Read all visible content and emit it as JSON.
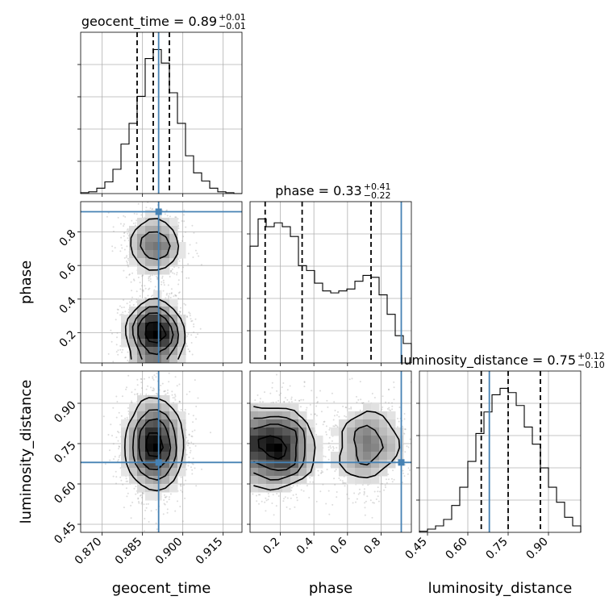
{
  "figure": {
    "type": "corner-plot"
  },
  "colors": {
    "truth": "#4682b4",
    "hist": "#000000",
    "grid": "#b0b0b0",
    "points": "#9a9a9a"
  },
  "chart_data": {
    "type": "corner",
    "parameters": [
      {
        "key": "geocent_time",
        "label": "geocent_time",
        "range": [
          0.862,
          0.922
        ],
        "ticks": [
          "0.870",
          "0.885",
          "0.900",
          "0.915"
        ],
        "tick_values": [
          0.87,
          0.885,
          0.9,
          0.915
        ],
        "truth": 0.891,
        "median": 0.89,
        "plus": 0.01,
        "minus": 0.01,
        "quantiles": [
          0.883,
          0.889,
          0.895
        ]
      },
      {
        "key": "phase",
        "label": "phase",
        "range": [
          0.02,
          0.98
        ],
        "ticks": [
          "0.2",
          "0.4",
          "0.6",
          "0.8"
        ],
        "tick_values": [
          0.2,
          0.4,
          0.6,
          0.8
        ],
        "truth": 0.92,
        "median": 0.33,
        "plus": 0.41,
        "minus": 0.22,
        "quantiles": [
          0.11,
          0.33,
          0.74
        ]
      },
      {
        "key": "luminosity_distance",
        "label": "luminosity_distance",
        "range": [
          0.42,
          1.02
        ],
        "ticks": [
          "0.45",
          "0.60",
          "0.75",
          "0.90"
        ],
        "tick_values": [
          0.45,
          0.6,
          0.75,
          0.9
        ],
        "truth": 0.68,
        "median": 0.75,
        "plus": 0.12,
        "minus": 0.1,
        "quantiles": [
          0.65,
          0.75,
          0.87
        ]
      }
    ],
    "titles": [
      {
        "param": "geocent_time",
        "text": "geocent_time = 0.89",
        "sup": "+0.01",
        "sub": "−0.01"
      },
      {
        "param": "phase",
        "text": "phase = 0.33",
        "sup": "+0.41",
        "sub": "−0.22"
      },
      {
        "param": "luminosity_distance",
        "text": "luminosity_distance = 0.75",
        "sup": "+0.12",
        "sub": "−0.10"
      }
    ],
    "histograms": {
      "geocent_time": {
        "bin_edges": [
          0.862,
          0.865,
          0.868,
          0.871,
          0.874,
          0.877,
          0.88,
          0.883,
          0.886,
          0.889,
          0.892,
          0.895,
          0.898,
          0.901,
          0.904,
          0.907,
          0.91,
          0.913,
          0.916,
          0.919,
          0.922
        ],
        "counts": [
          1,
          2,
          6,
          13,
          27,
          55,
          78,
          108,
          150,
          160,
          145,
          112,
          78,
          42,
          23,
          14,
          6,
          2,
          1,
          0
        ]
      },
      "phase": {
        "bin_edges": [
          0.02,
          0.068,
          0.116,
          0.164,
          0.212,
          0.26,
          0.308,
          0.356,
          0.404,
          0.452,
          0.5,
          0.548,
          0.596,
          0.644,
          0.692,
          0.74,
          0.788,
          0.836,
          0.884,
          0.932,
          0.98
        ],
        "counts": [
          120,
          148,
          140,
          144,
          140,
          130,
          100,
          95,
          82,
          74,
          72,
          74,
          76,
          84,
          90,
          88,
          70,
          50,
          28,
          20
        ]
      },
      "luminosity_distance": {
        "bin_edges": [
          0.42,
          0.45,
          0.48,
          0.51,
          0.54,
          0.57,
          0.6,
          0.63,
          0.66,
          0.69,
          0.72,
          0.75,
          0.78,
          0.81,
          0.84,
          0.87,
          0.9,
          0.93,
          0.96,
          0.99,
          1.02
        ],
        "counts": [
          1,
          3,
          6,
          12,
          25,
          42,
          66,
          92,
          112,
          128,
          134,
          130,
          118,
          98,
          82,
          60,
          42,
          28,
          14,
          6
        ]
      }
    },
    "densities": [
      {
        "x": "geocent_time",
        "y": "phase",
        "x_mean": 0.8895,
        "x_sd": 0.0055,
        "y_modes": [
          {
            "mean": 0.2,
            "sd": 0.1,
            "weight": 1.0
          },
          {
            "mean": 0.72,
            "sd": 0.1,
            "weight": 0.55
          }
        ],
        "y_clip": [
          0.02,
          0.98
        ]
      },
      {
        "x": "geocent_time",
        "y": "luminosity_distance",
        "x_mean": 0.8895,
        "x_sd": 0.0055,
        "y_modes": [
          {
            "mean": 0.75,
            "sd": 0.09,
            "weight": 1.0
          }
        ],
        "y_clip": [
          0.42,
          1.02
        ]
      },
      {
        "x": "phase",
        "y": "luminosity_distance",
        "x_modes": [
          {
            "mean": 0.18,
            "sd": 0.12,
            "weight": 1.0
          },
          {
            "mean": 0.72,
            "sd": 0.11,
            "weight": 0.55
          }
        ],
        "y_mean": 0.74,
        "y_sd": 0.085,
        "x_clip": [
          0.02,
          0.98
        ]
      }
    ]
  }
}
